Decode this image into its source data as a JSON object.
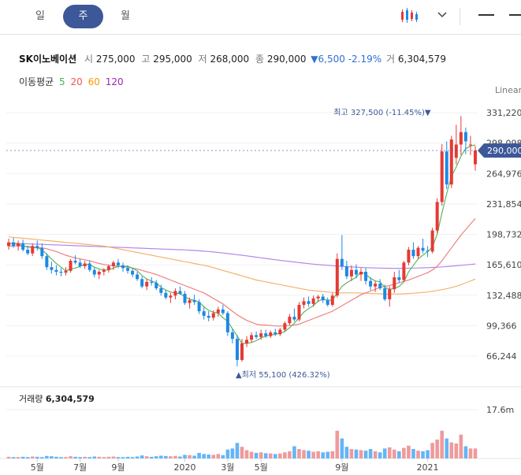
{
  "tabs": [
    {
      "label": "일",
      "active": false
    },
    {
      "label": "주",
      "active": true
    },
    {
      "label": "월",
      "active": false
    }
  ],
  "stock": {
    "name": "SK이노베이션",
    "open_label": "시",
    "open": "275,000",
    "high_label": "고",
    "high": "295,000",
    "low_label": "저",
    "low": "268,000",
    "close_label": "종",
    "close": "290,000",
    "change": "6,500",
    "change_pct": "-2.19%",
    "volume_label": "거",
    "volume": "6,304,579"
  },
  "moving_average": {
    "label": "이동평균",
    "periods": [
      {
        "period": "5",
        "color": "#4caf50"
      },
      {
        "period": "20",
        "color": "#ef5350"
      },
      {
        "period": "60",
        "color": "#ff9800"
      },
      {
        "period": "120",
        "color": "#9c27b0"
      }
    ]
  },
  "scale_mode": "Linear",
  "volume_panel": {
    "label": "거래량",
    "value": "6,304,579",
    "tick": "17.6m"
  },
  "chart_data": {
    "type": "candlestick",
    "y_ticks": [
      "331,220",
      "298,098",
      "264,976",
      "231,854",
      "198,732",
      "165,610",
      "132,488",
      "99,366",
      "66,244"
    ],
    "y_tick_values": [
      331220,
      298098,
      264976,
      231854,
      198732,
      165610,
      132488,
      99366,
      66244
    ],
    "x_ticks": [
      "5월",
      "7월",
      "9월",
      "2020",
      "3월",
      "5월",
      "9월",
      "2021"
    ],
    "x_tick_index": [
      6,
      15,
      23,
      37,
      46,
      53,
      70,
      88
    ],
    "current_price": "290,000",
    "high_annotation": {
      "label": "최고",
      "value": "327,500",
      "pct": "(-11.45%)",
      "index": 89
    },
    "low_annotation": {
      "label": "최저",
      "value": "55,100",
      "pct": "(426.32%)",
      "index": 48
    },
    "ohlc": [
      [
        186000,
        194000,
        182000,
        190000
      ],
      [
        190000,
        195000,
        184000,
        186000
      ],
      [
        186000,
        192000,
        181000,
        189000
      ],
      [
        189000,
        193000,
        180000,
        182000
      ],
      [
        182000,
        186000,
        176000,
        178000
      ],
      [
        178000,
        189000,
        175000,
        186000
      ],
      [
        186000,
        192000,
        181000,
        184000
      ],
      [
        184000,
        189000,
        172000,
        175000
      ],
      [
        175000,
        178000,
        160000,
        163000
      ],
      [
        163000,
        169000,
        156000,
        160000
      ],
      [
        160000,
        165000,
        154000,
        158000
      ],
      [
        158000,
        162000,
        153000,
        157000
      ],
      [
        157000,
        163000,
        154000,
        159000
      ],
      [
        159000,
        172000,
        157000,
        170000
      ],
      [
        170000,
        176000,
        166000,
        168000
      ],
      [
        168000,
        172000,
        162000,
        164000
      ],
      [
        164000,
        170000,
        161000,
        167000
      ],
      [
        167000,
        170000,
        158000,
        160000
      ],
      [
        160000,
        163000,
        152000,
        155000
      ],
      [
        155000,
        160000,
        150000,
        158000
      ],
      [
        158000,
        162000,
        154000,
        160000
      ],
      [
        160000,
        166000,
        157000,
        164000
      ],
      [
        164000,
        170000,
        160000,
        168000
      ],
      [
        168000,
        172000,
        162000,
        165000
      ],
      [
        165000,
        168000,
        158000,
        162000
      ],
      [
        162000,
        165000,
        156000,
        159000
      ],
      [
        159000,
        162000,
        152000,
        155000
      ],
      [
        155000,
        158000,
        148000,
        150000
      ],
      [
        150000,
        153000,
        140000,
        142000
      ],
      [
        142000,
        150000,
        138000,
        147000
      ],
      [
        147000,
        152000,
        143000,
        146000
      ],
      [
        146000,
        149000,
        138000,
        140000
      ],
      [
        140000,
        144000,
        132000,
        135000
      ],
      [
        135000,
        138000,
        128000,
        130000
      ],
      [
        130000,
        135000,
        124000,
        132000
      ],
      [
        132000,
        140000,
        128000,
        137000
      ],
      [
        137000,
        142000,
        133000,
        134000
      ],
      [
        134000,
        137000,
        122000,
        124000
      ],
      [
        124000,
        130000,
        118000,
        127000
      ],
      [
        127000,
        133000,
        122000,
        125000
      ],
      [
        125000,
        128000,
        112000,
        115000
      ],
      [
        115000,
        120000,
        106000,
        110000
      ],
      [
        110000,
        115000,
        104000,
        108000
      ],
      [
        108000,
        116000,
        105000,
        113000
      ],
      [
        113000,
        120000,
        109000,
        117000
      ],
      [
        117000,
        122000,
        111000,
        113000
      ],
      [
        113000,
        115000,
        88000,
        92000
      ],
      [
        92000,
        96000,
        80000,
        85000
      ],
      [
        85000,
        89000,
        55100,
        62000
      ],
      [
        62000,
        85000,
        60000,
        80000
      ],
      [
        80000,
        88000,
        76000,
        84000
      ],
      [
        84000,
        92000,
        81000,
        89000
      ],
      [
        89000,
        93000,
        85000,
        87000
      ],
      [
        87000,
        95000,
        84000,
        91000
      ],
      [
        91000,
        95000,
        86000,
        88000
      ],
      [
        88000,
        94000,
        86000,
        92000
      ],
      [
        92000,
        96000,
        88000,
        90000
      ],
      [
        90000,
        97000,
        88000,
        95000
      ],
      [
        95000,
        104000,
        93000,
        102000
      ],
      [
        102000,
        112000,
        100000,
        109000
      ],
      [
        109000,
        118000,
        104000,
        106000
      ],
      [
        106000,
        125000,
        104000,
        122000
      ],
      [
        122000,
        130000,
        118000,
        126000
      ],
      [
        126000,
        131000,
        120000,
        123000
      ],
      [
        123000,
        132000,
        120000,
        129000
      ],
      [
        129000,
        133000,
        125000,
        131000
      ],
      [
        131000,
        134000,
        124000,
        127000
      ],
      [
        127000,
        130000,
        120000,
        122000
      ],
      [
        122000,
        135000,
        120000,
        132000
      ],
      [
        132000,
        178000,
        130000,
        172000
      ],
      [
        172000,
        198000,
        160000,
        164000
      ],
      [
        164000,
        170000,
        150000,
        153000
      ],
      [
        153000,
        165000,
        148000,
        160000
      ],
      [
        160000,
        166000,
        151000,
        155000
      ],
      [
        155000,
        162000,
        148000,
        158000
      ],
      [
        158000,
        162000,
        144000,
        148000
      ],
      [
        148000,
        152000,
        138000,
        142000
      ],
      [
        142000,
        148000,
        136000,
        145000
      ],
      [
        145000,
        150000,
        138000,
        140000
      ],
      [
        140000,
        144000,
        126000,
        128000
      ],
      [
        128000,
        142000,
        120000,
        139000
      ],
      [
        139000,
        158000,
        135000,
        152000
      ],
      [
        152000,
        160000,
        146000,
        149000
      ],
      [
        149000,
        170000,
        147000,
        168000
      ],
      [
        168000,
        185000,
        165000,
        182000
      ],
      [
        182000,
        190000,
        172000,
        175000
      ],
      [
        175000,
        186000,
        172000,
        184000
      ],
      [
        184000,
        194000,
        178000,
        181000
      ],
      [
        181000,
        186000,
        174000,
        180000
      ],
      [
        180000,
        206000,
        178000,
        203000
      ],
      [
        203000,
        238000,
        200000,
        234000
      ],
      [
        234000,
        297000,
        230000,
        289000
      ],
      [
        289000,
        300000,
        248000,
        253000
      ],
      [
        253000,
        306000,
        249000,
        302000
      ],
      [
        282000,
        318000,
        275000,
        296500
      ],
      [
        296500,
        327500,
        285000,
        310000
      ],
      [
        310000,
        315000,
        286000,
        300000
      ],
      [
        296500,
        306000,
        285000,
        296500
      ],
      [
        275000,
        295000,
        268000,
        290000
      ]
    ],
    "ma5": [
      189000,
      188500,
      188000,
      186000,
      185000,
      184500,
      184000,
      182000,
      177000,
      172000,
      167000,
      163000,
      159000,
      161000,
      162000,
      164000,
      166000,
      166000,
      163000,
      161000,
      160000,
      160000,
      162000,
      164000,
      164000,
      164000,
      162000,
      159000,
      154000,
      150000,
      148000,
      146000,
      141000,
      138000,
      136000,
      135000,
      134000,
      131000,
      128000,
      127000,
      125000,
      120000,
      116000,
      114000,
      113000,
      108000,
      104000,
      96000,
      88000,
      80000,
      80000,
      81000,
      83000,
      86000,
      88000,
      89000,
      90000,
      91000,
      93000,
      97000,
      102000,
      108000,
      114000,
      118000,
      121000,
      126000,
      128000,
      127000,
      127000,
      135000,
      142000,
      146000,
      149000,
      152000,
      158000,
      155000,
      151000,
      148000,
      147000,
      141000,
      139000,
      140000,
      142000,
      147000,
      158000,
      165000,
      172000,
      176000,
      180000,
      185000,
      199000,
      222000,
      243000,
      262000,
      272000,
      284000,
      292000,
      295000,
      296000
    ],
    "ma20": [
      186000,
      186000,
      186000,
      186000,
      185500,
      185000,
      184500,
      184000,
      183000,
      181500,
      180000,
      178000,
      176000,
      174500,
      173000,
      172000,
      171000,
      170000,
      168500,
      167000,
      166000,
      165000,
      164500,
      164000,
      163500,
      163000,
      162000,
      161000,
      159500,
      158000,
      156500,
      155000,
      153000,
      151000,
      149000,
      147000,
      145000,
      143000,
      141000,
      139000,
      137000,
      135000,
      132000,
      129000,
      126000,
      123000,
      119000,
      115000,
      111000,
      108000,
      105000,
      103000,
      101000,
      100000,
      100000,
      99500,
      99000,
      99000,
      99000,
      99500,
      100000,
      101000,
      103000,
      105000,
      107000,
      109000,
      111000,
      113000,
      115000,
      118000,
      121000,
      124000,
      127000,
      130000,
      133000,
      135000,
      137000,
      139000,
      141000,
      142000,
      143000,
      144500,
      146000,
      147500,
      149000,
      151000,
      153000,
      155000,
      157000,
      160000,
      164000,
      170000,
      177000,
      184000,
      191000,
      198000,
      204000,
      210000,
      216000
    ],
    "ma60": [
      196000,
      195500,
      195000,
      194500,
      194000,
      193500,
      193000,
      192500,
      192000,
      191500,
      191000,
      190500,
      190000,
      189500,
      189000,
      188500,
      188000,
      187500,
      187000,
      186500,
      186000,
      185000,
      184000,
      183000,
      182000,
      181000,
      180000,
      179000,
      178000,
      177000,
      176000,
      175000,
      174000,
      173000,
      172000,
      171000,
      170000,
      169000,
      168000,
      167000,
      166000,
      165000,
      164000,
      162500,
      161000,
      159500,
      158000,
      156500,
      155000,
      153500,
      152000,
      150500,
      149000,
      148000,
      147000,
      146000,
      145000,
      144000,
      143000,
      142000,
      141000,
      140000,
      139000,
      138000,
      137500,
      137000,
      136500,
      136000,
      135500,
      135000,
      135000,
      135000,
      135000,
      135000,
      134800,
      134600,
      134400,
      134200,
      134000,
      133800,
      133700,
      133700,
      133800,
      134000,
      134300,
      134600,
      135000,
      135500,
      136000,
      136800,
      137600,
      138500,
      139500,
      140800,
      142200,
      144000,
      146000,
      148000,
      150000
    ],
    "ma120": [
      189000,
      189000,
      188800,
      188600,
      188400,
      188200,
      188000,
      187800,
      187600,
      187400,
      187200,
      187000,
      186800,
      186600,
      186400,
      186200,
      186000,
      185800,
      185600,
      185400,
      185200,
      185000,
      184800,
      184600,
      184400,
      184200,
      184000,
      183800,
      183600,
      183400,
      183200,
      183000,
      182800,
      182600,
      182400,
      182200,
      182000,
      181800,
      181500,
      181200,
      180800,
      180400,
      180000,
      179500,
      179000,
      178400,
      177800,
      177200,
      176600,
      176000,
      175300,
      174600,
      173900,
      173200,
      172500,
      171800,
      171100,
      170400,
      169800,
      169200,
      168600,
      168000,
      167400,
      166800,
      166300,
      165800,
      165400,
      165000,
      164600,
      164200,
      163900,
      163600,
      163300,
      163000,
      162700,
      162500,
      162300,
      162100,
      162000,
      161900,
      161800,
      161800,
      161800,
      161800,
      161900,
      162000,
      162100,
      162300,
      162500,
      162700,
      163000,
      163300,
      163700,
      164100,
      164500,
      165000,
      165500,
      166000,
      166500
    ],
    "volume": [
      0.6,
      0.5,
      0.5,
      0.6,
      0.5,
      0.7,
      0.6,
      0.5,
      0.9,
      0.8,
      0.6,
      0.5,
      0.5,
      0.8,
      0.6,
      0.5,
      0.6,
      0.5,
      0.7,
      0.6,
      0.5,
      0.6,
      0.7,
      0.5,
      0.5,
      0.6,
      0.5,
      0.7,
      1.1,
      0.8,
      0.6,
      0.8,
      1.0,
      0.9,
      0.8,
      0.9,
      0.7,
      1.3,
      1.2,
      1.0,
      2.0,
      1.6,
      1.4,
      1.3,
      1.6,
      1.2,
      3.2,
      3.6,
      5.6,
      4.2,
      3.0,
      2.4,
      2.0,
      2.2,
      1.9,
      1.8,
      1.6,
      1.8,
      2.2,
      2.6,
      4.4,
      3.4,
      3.0,
      2.8,
      2.4,
      2.6,
      2.2,
      2.4,
      2.6,
      10.0,
      7.2,
      4.2,
      3.4,
      3.2,
      3.0,
      2.8,
      3.4,
      2.6,
      2.2,
      3.6,
      4.0,
      3.2,
      2.6,
      3.8,
      4.6,
      3.4,
      2.8,
      2.6,
      3.0,
      5.6,
      6.8,
      10.0,
      7.2,
      5.8,
      5.4,
      8.6,
      4.4,
      3.6,
      3.6
    ],
    "volume_max": 17.6
  }
}
